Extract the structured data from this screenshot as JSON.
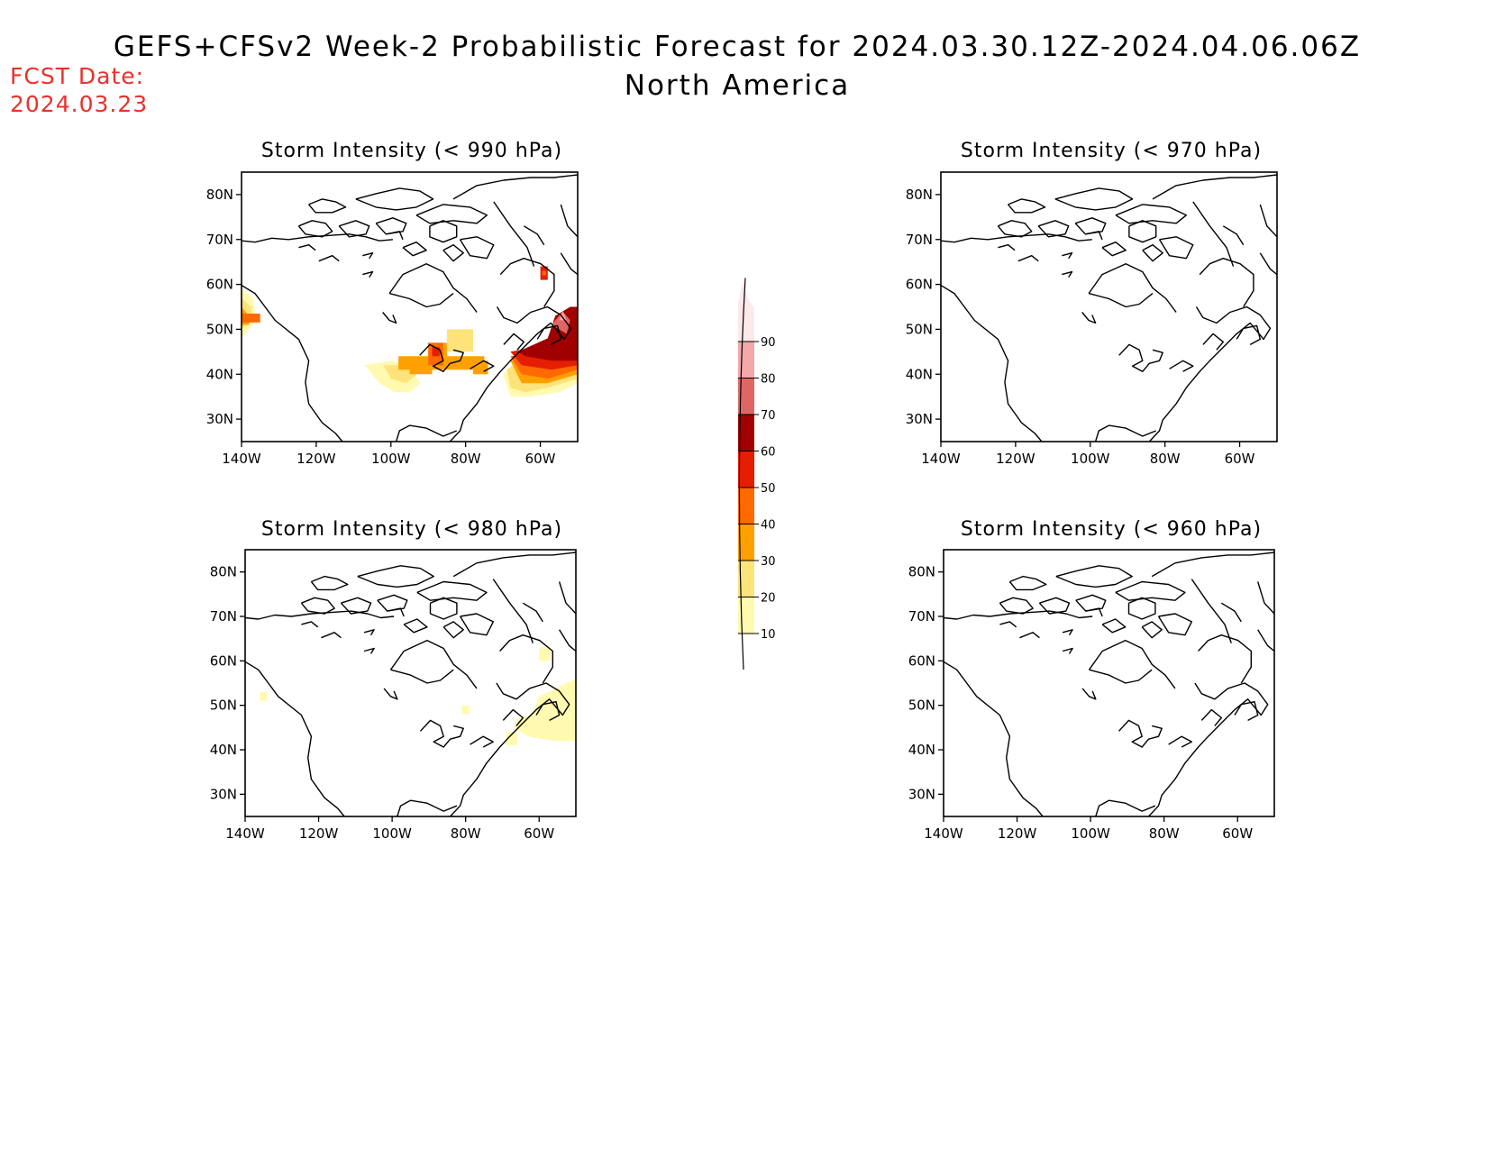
{
  "header": {
    "title": "GEFS+CFSv2 Week-2 Probabilistic Forecast for 2024.03.30.12Z-2024.04.06.06Z",
    "subtitle": "North America",
    "fcst_label": "FCST Date:",
    "fcst_date": "2024.03.23"
  },
  "axes": {
    "lat_ticks": [
      {
        "value": 80,
        "label": "80N"
      },
      {
        "value": 70,
        "label": "70N"
      },
      {
        "value": 60,
        "label": "60N"
      },
      {
        "value": 50,
        "label": "50N"
      },
      {
        "value": 40,
        "label": "40N"
      },
      {
        "value": 30,
        "label": "30N"
      }
    ],
    "lon_ticks": [
      {
        "value": -140,
        "label": "140W"
      },
      {
        "value": -120,
        "label": "120W"
      },
      {
        "value": -100,
        "label": "100W"
      },
      {
        "value": -80,
        "label": "80W"
      },
      {
        "value": -60,
        "label": "60W"
      }
    ],
    "lon_range": [
      -140,
      -50
    ],
    "lat_range": [
      25,
      85
    ]
  },
  "colorbar": {
    "levels": [
      10,
      20,
      30,
      40,
      50,
      60,
      70,
      80,
      90
    ],
    "colors": [
      "#fffab0",
      "#fde37a",
      "#ffa000",
      "#ff6a00",
      "#e61e00",
      "#a00000",
      "#e06666",
      "#f4a8a8",
      "#fde8ea"
    ]
  },
  "panels": [
    {
      "title": "Storm Intensity (< 990 hPa)",
      "regions": [
        {
          "level": 1,
          "points": [
            [
              -140,
              59
            ],
            [
              -137,
              57
            ],
            [
              -136,
              52
            ],
            [
              -140,
              48
            ]
          ]
        },
        {
          "level": 2,
          "points": [
            [
              -140,
              57
            ],
            [
              -137.5,
              55
            ],
            [
              -137,
              52
            ],
            [
              -140,
              50
            ]
          ]
        },
        {
          "level": 3,
          "points": [
            [
              -140,
              55
            ],
            [
              -138,
              53
            ],
            [
              -138,
              51
            ],
            [
              -140,
              51
            ]
          ]
        },
        {
          "level": 4,
          "points": [
            [
              -140,
              53.5
            ],
            [
              -135,
              53.5
            ],
            [
              -135,
              51.5
            ],
            [
              -140,
              51.5
            ]
          ]
        },
        {
          "level": 1,
          "points": [
            [
              -107,
              42
            ],
            [
              -100,
              43
            ],
            [
              -96,
              42
            ],
            [
              -92,
              38
            ],
            [
              -95,
              36
            ],
            [
              -99,
              36
            ],
            [
              -103,
              38
            ]
          ]
        },
        {
          "level": 2,
          "points": [
            [
              -102,
              42
            ],
            [
              -96,
              42
            ],
            [
              -93,
              40
            ],
            [
              -96,
              38
            ],
            [
              -100,
              39
            ]
          ]
        },
        {
          "level": 3,
          "points": [
            [
              -98,
              44
            ],
            [
              -87,
              44
            ],
            [
              -87,
              41
            ],
            [
              -98,
              41
            ]
          ]
        },
        {
          "level": 3,
          "points": [
            [
              -95,
              42
            ],
            [
              -89,
              42
            ],
            [
              -89,
              40
            ],
            [
              -95,
              40
            ]
          ]
        },
        {
          "level": 3,
          "points": [
            [
              -90,
              47
            ],
            [
              -85,
              47
            ],
            [
              -85,
              44
            ],
            [
              -90,
              44
            ]
          ]
        },
        {
          "level": 2,
          "points": [
            [
              -85,
              50
            ],
            [
              -78,
              50
            ],
            [
              -78,
              45
            ],
            [
              -85,
              45
            ]
          ]
        },
        {
          "level": 3,
          "points": [
            [
              -90,
              44
            ],
            [
              -75,
              44
            ],
            [
              -75,
              41
            ],
            [
              -90,
              41
            ]
          ]
        },
        {
          "level": 4,
          "points": [
            [
              -90,
              47
            ],
            [
              -86,
              47
            ],
            [
              -86,
              42
            ],
            [
              -90,
              42
            ]
          ]
        },
        {
          "level": 5,
          "points": [
            [
              -89,
              46
            ],
            [
              -87,
              46
            ],
            [
              -87,
              44
            ],
            [
              -89,
              44
            ]
          ]
        },
        {
          "level": 3,
          "points": [
            [
              -78,
              43
            ],
            [
              -74,
              43
            ],
            [
              -74,
              40
            ],
            [
              -78,
              40
            ]
          ]
        },
        {
          "level": 1,
          "points": [
            [
              -70,
              40
            ],
            [
              -65,
              44
            ],
            [
              -55,
              44
            ],
            [
              -50,
              42
            ],
            [
              -50,
              38
            ],
            [
              -55,
              36
            ],
            [
              -63,
              35
            ],
            [
              -68,
              35
            ]
          ]
        },
        {
          "level": 2,
          "points": [
            [
              -69,
              41
            ],
            [
              -64,
              44
            ],
            [
              -55,
              44
            ],
            [
              -50,
              42
            ],
            [
              -50,
              39
            ],
            [
              -58,
              37
            ],
            [
              -64,
              36
            ],
            [
              -68,
              37
            ]
          ]
        },
        {
          "level": 3,
          "points": [
            [
              -68,
              43
            ],
            [
              -62,
              44
            ],
            [
              -50,
              44
            ],
            [
              -50,
              40
            ],
            [
              -58,
              38
            ],
            [
              -65,
              38
            ]
          ]
        },
        {
          "level": 4,
          "points": [
            [
              -68,
              44
            ],
            [
              -55,
              45
            ],
            [
              -50,
              44
            ],
            [
              -50,
              41
            ],
            [
              -58,
              39
            ],
            [
              -65,
              40
            ]
          ]
        },
        {
          "level": 5,
          "points": [
            [
              -68,
              45
            ],
            [
              -55,
              47
            ],
            [
              -50,
              49
            ],
            [
              -50,
              42
            ],
            [
              -57,
              41
            ],
            [
              -65,
              42
            ]
          ]
        },
        {
          "level": 6,
          "points": [
            [
              -66,
              45
            ],
            [
              -58,
              48
            ],
            [
              -56,
              53
            ],
            [
              -52,
              55
            ],
            [
              -50,
              55
            ],
            [
              -50,
              43
            ],
            [
              -57,
              43
            ],
            [
              -64,
              44
            ]
          ]
        },
        {
          "level": 7,
          "points": [
            [
              -57,
              51
            ],
            [
              -54,
              54
            ],
            [
              -52,
              52
            ],
            [
              -53,
              49
            ]
          ]
        },
        {
          "level": 8,
          "points": [
            [
              -55,
              52
            ],
            [
              -54,
              54
            ],
            [
              -53,
              52
            ]
          ]
        },
        {
          "level": 5,
          "points": [
            [
              -60,
              64
            ],
            [
              -58,
              64
            ],
            [
              -58,
              61
            ],
            [
              -60,
              61
            ]
          ]
        },
        {
          "level": 4,
          "points": [
            [
              -59.5,
              63
            ],
            [
              -58.5,
              63
            ],
            [
              -58.5,
              62
            ],
            [
              -59.5,
              62
            ]
          ]
        }
      ]
    },
    {
      "title": "Storm Intensity (< 970 hPa)",
      "regions": []
    },
    {
      "title": "Storm Intensity (< 980 hPa)",
      "regions": [
        {
          "level": 1,
          "points": [
            [
              -60,
              63
            ],
            [
              -57,
              63
            ],
            [
              -57,
              60
            ],
            [
              -60,
              60
            ]
          ]
        },
        {
          "level": 1,
          "points": [
            [
              -136,
              53
            ],
            [
              -134,
              53
            ],
            [
              -134,
              51
            ],
            [
              -136,
              51
            ]
          ]
        },
        {
          "level": 1,
          "points": [
            [
              -81,
              50
            ],
            [
              -79,
              50
            ],
            [
              -79,
              48
            ],
            [
              -81,
              48
            ]
          ]
        },
        {
          "level": 1,
          "points": [
            [
              -60,
              52
            ],
            [
              -55,
              54
            ],
            [
              -50,
              56
            ],
            [
              -50,
              42
            ],
            [
              -56,
              42
            ],
            [
              -63,
              43
            ],
            [
              -67,
              45
            ],
            [
              -66,
              47
            ],
            [
              -62,
              48
            ]
          ]
        },
        {
          "level": 1,
          "points": [
            [
              -69,
              44
            ],
            [
              -66,
              44
            ],
            [
              -66,
              41
            ],
            [
              -69,
              41
            ]
          ]
        }
      ]
    },
    {
      "title": "Storm Intensity (< 960 hPa)",
      "regions": []
    }
  ]
}
